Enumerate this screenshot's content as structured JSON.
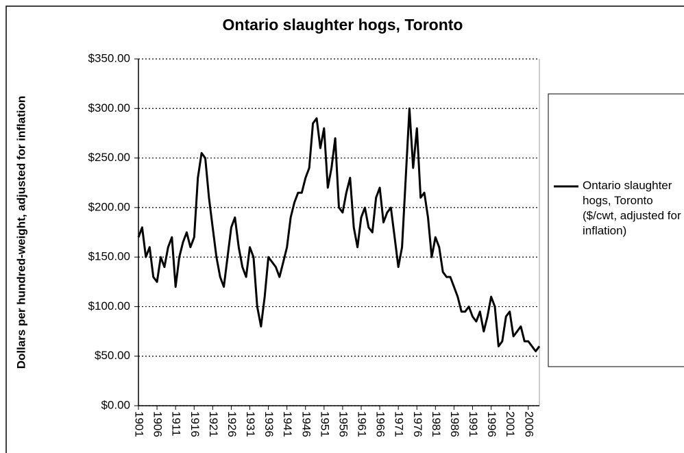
{
  "chart_data": {
    "type": "line",
    "title": "Ontario slaughter hogs, Toronto",
    "y_label": "Dollars per hundred-weight, adjusted for inflation",
    "x": [
      1901,
      1902,
      1903,
      1904,
      1905,
      1906,
      1907,
      1908,
      1909,
      1910,
      1911,
      1912,
      1913,
      1914,
      1915,
      1916,
      1917,
      1918,
      1919,
      1920,
      1921,
      1922,
      1923,
      1924,
      1925,
      1926,
      1927,
      1928,
      1929,
      1930,
      1931,
      1932,
      1933,
      1934,
      1935,
      1936,
      1937,
      1938,
      1939,
      1940,
      1941,
      1942,
      1943,
      1944,
      1945,
      1946,
      1947,
      1948,
      1949,
      1950,
      1951,
      1952,
      1953,
      1954,
      1955,
      1956,
      1957,
      1958,
      1959,
      1960,
      1961,
      1962,
      1963,
      1964,
      1965,
      1966,
      1967,
      1968,
      1969,
      1970,
      1971,
      1972,
      1973,
      1974,
      1975,
      1976,
      1977,
      1978,
      1979,
      1980,
      1981,
      1982,
      1983,
      1984,
      1985,
      1986,
      1987,
      1988,
      1989,
      1990,
      1991,
      1992,
      1993,
      1994,
      1995,
      1996,
      1997,
      1998,
      1999,
      2000,
      2001,
      2002,
      2003,
      2004,
      2005,
      2006,
      2007,
      2008,
      2009
    ],
    "series": [
      {
        "name": "Ontario slaughter hogs, Toronto ($/cwt, adjusted for inflation)",
        "color": "#000000",
        "values": [
          170,
          180,
          150,
          160,
          130,
          125,
          150,
          140,
          160,
          170,
          120,
          150,
          165,
          175,
          160,
          170,
          230,
          255,
          250,
          210,
          180,
          150,
          130,
          120,
          150,
          180,
          190,
          160,
          140,
          130,
          160,
          150,
          100,
          80,
          110,
          150,
          145,
          140,
          130,
          145,
          160,
          190,
          205,
          215,
          215,
          230,
          240,
          285,
          290,
          260,
          280,
          220,
          240,
          270,
          200,
          195,
          215,
          230,
          180,
          160,
          190,
          200,
          180,
          175,
          210,
          220,
          185,
          195,
          200,
          170,
          140,
          160,
          230,
          300,
          240,
          280,
          210,
          215,
          190,
          150,
          170,
          160,
          135,
          130,
          130,
          120,
          110,
          95,
          95,
          100,
          90,
          85,
          95,
          75,
          90,
          110,
          100,
          60,
          65,
          90,
          95,
          70,
          75,
          80,
          65,
          65,
          60,
          55,
          60
        ]
      }
    ],
    "xlim": [
      1901,
      2009
    ],
    "xticks": [
      1901,
      1906,
      1911,
      1916,
      1921,
      1926,
      1931,
      1936,
      1941,
      1946,
      1951,
      1956,
      1961,
      1966,
      1971,
      1976,
      1981,
      1986,
      1991,
      1996,
      2001,
      2006
    ],
    "ylim": [
      0,
      350
    ],
    "yticks": [
      {
        "value": 0,
        "label": "$0.00"
      },
      {
        "value": 50,
        "label": "$50.00"
      },
      {
        "value": 100,
        "label": "$100.00"
      },
      {
        "value": 150,
        "label": "$150.00"
      },
      {
        "value": 200,
        "label": "$200.00"
      },
      {
        "value": 250,
        "label": "$250.00"
      },
      {
        "value": 300,
        "label": "$300.00"
      },
      {
        "value": 350,
        "label": "$350.00"
      }
    ],
    "grid": true
  }
}
